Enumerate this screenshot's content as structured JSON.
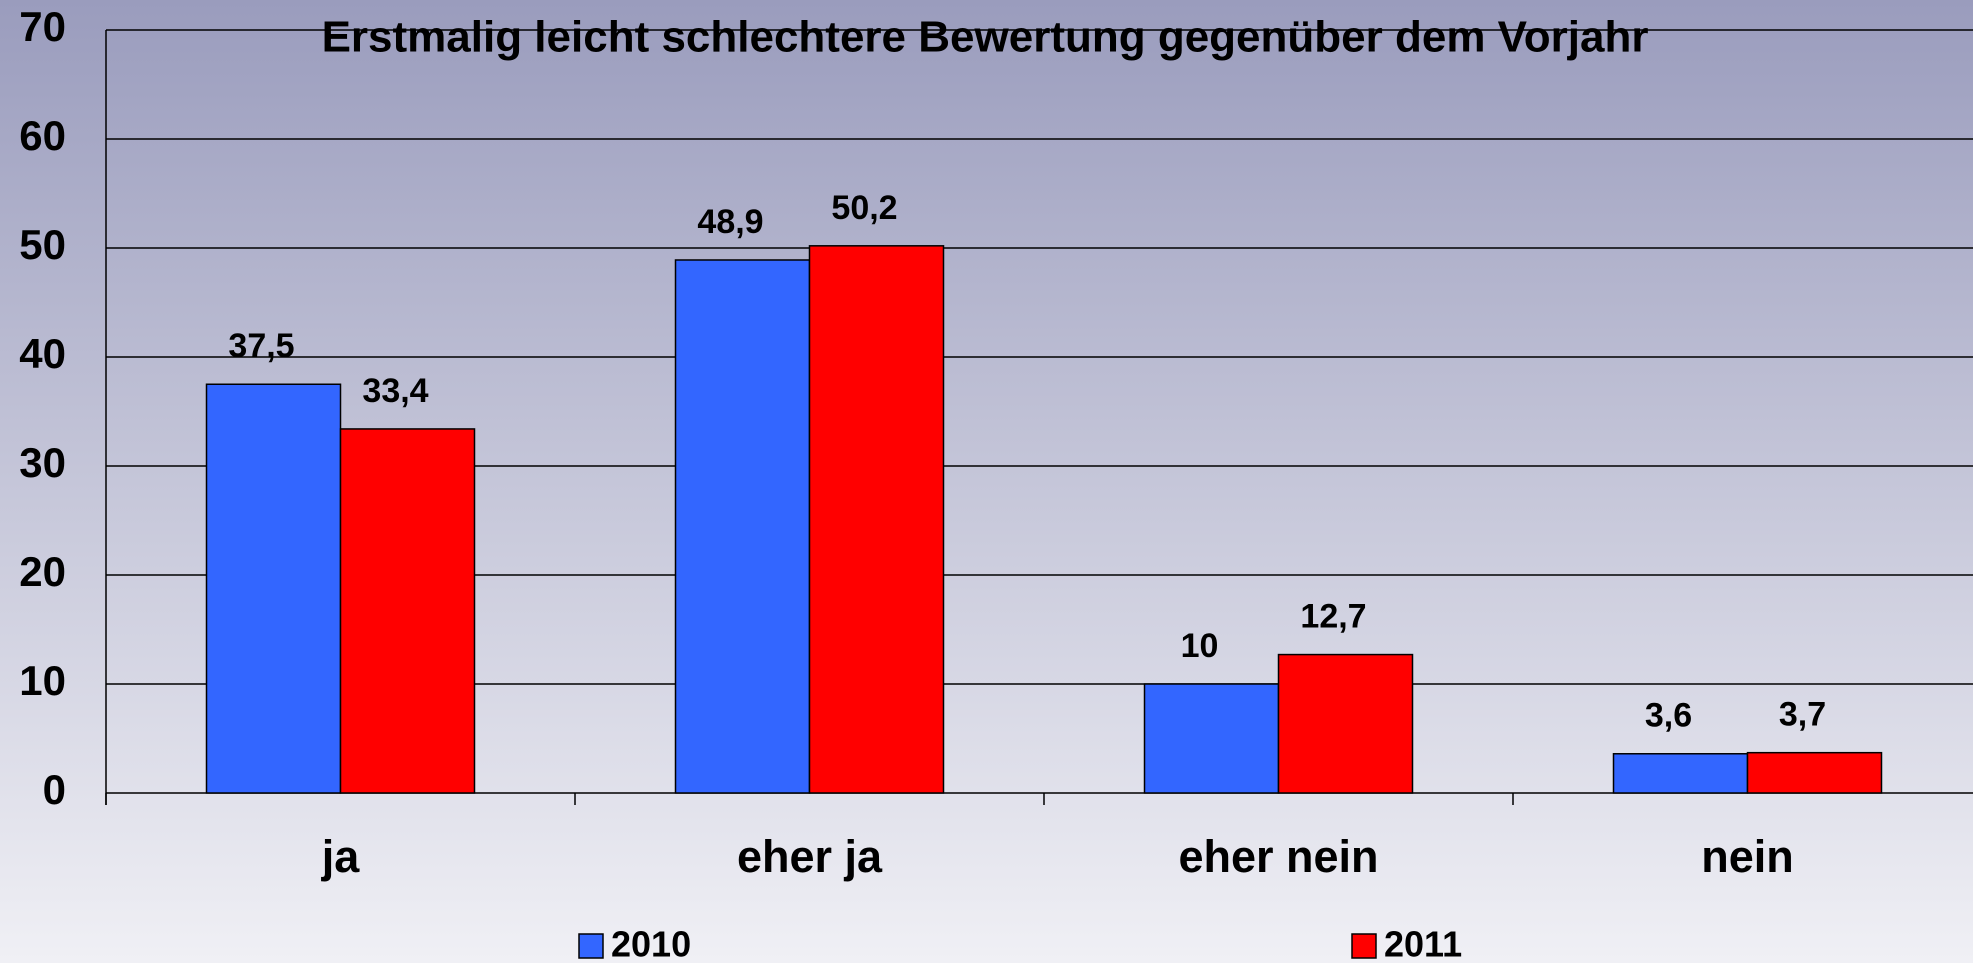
{
  "chart_data": {
    "type": "bar",
    "title": "Erstmalig leicht schlechtere Bewertung gegenüber dem Vorjahr",
    "categories": [
      "ja",
      "eher ja",
      "eher nein",
      "nein"
    ],
    "series": [
      {
        "name": "2010",
        "color": "#3366ff",
        "values": [
          37.5,
          48.9,
          10,
          3.6
        ],
        "value_labels": [
          "37,5",
          "48,9",
          "10",
          "3,6"
        ]
      },
      {
        "name": "2011",
        "color": "#ff0000",
        "values": [
          33.4,
          50.2,
          12.7,
          3.7
        ],
        "value_labels": [
          "33,4",
          "50,2",
          "12,7",
          "3,7"
        ]
      }
    ],
    "ylim": [
      0,
      70
    ],
    "yticks": [
      0,
      10,
      20,
      30,
      40,
      50,
      60,
      70
    ],
    "grid": true,
    "legend": "bottom"
  }
}
